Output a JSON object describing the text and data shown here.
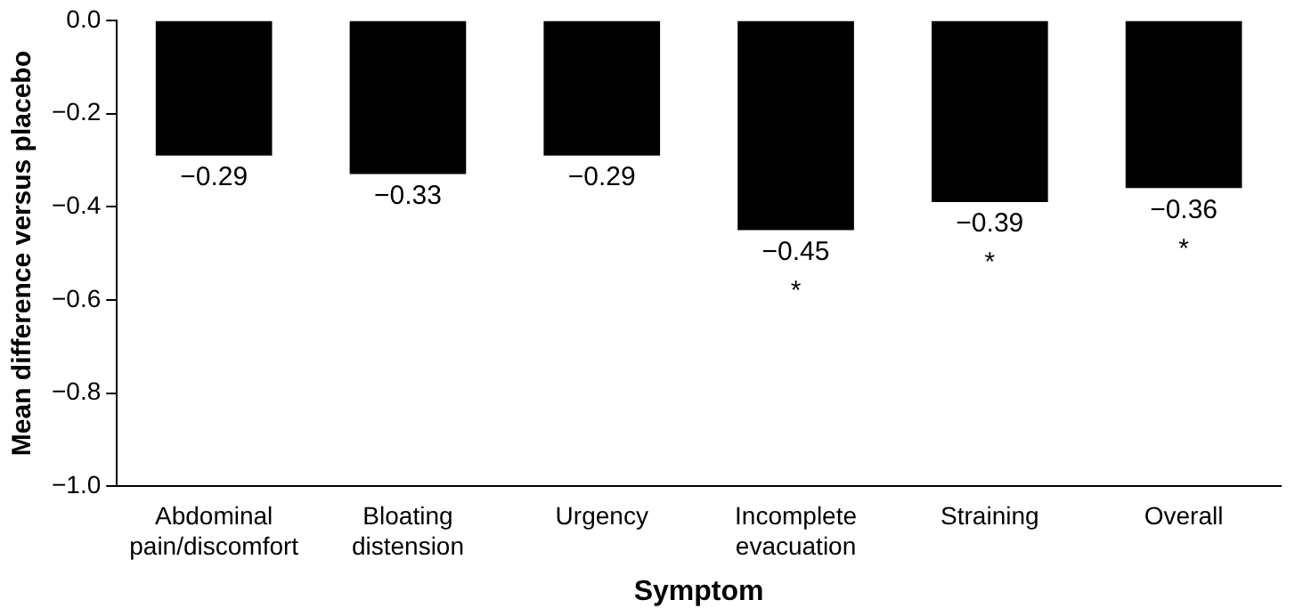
{
  "chart_data": {
    "type": "bar",
    "xlabel": "Symptom",
    "ylabel": "Mean difference versus placebo",
    "categories": [
      "Abdominal\npain/discomfort",
      "Bloating\ndistension",
      "Urgency",
      "Incomplete\nevacuation",
      "Straining",
      "Overall"
    ],
    "values": [
      -0.29,
      -0.33,
      -0.29,
      -0.45,
      -0.39,
      -0.36
    ],
    "value_labels": [
      "−0.29",
      "−0.33",
      "−0.29",
      "−0.45",
      "−0.39",
      "−0.36"
    ],
    "color": "#000000",
    "ylim": [
      -1.0,
      0.0
    ],
    "yticks": [
      {
        "value": 0,
        "label": "0.0"
      },
      {
        "value": -0.2,
        "label": "−0.2"
      },
      {
        "value": -0.4,
        "label": "−0.4"
      },
      {
        "value": -0.6,
        "label": "−0.6"
      },
      {
        "value": -0.8,
        "label": "−0.8"
      },
      {
        "value": -1.0,
        "label": "−1.0"
      }
    ],
    "annotations": [
      {
        "text": "*",
        "x": "Incomplete\nevacuation",
        "y": -0.45
      },
      {
        "text": "*",
        "x": "Straining",
        "y": -0.39
      },
      {
        "text": "*",
        "x": "Overall",
        "y": -0.36
      }
    ],
    "grid": false,
    "legend": false
  }
}
